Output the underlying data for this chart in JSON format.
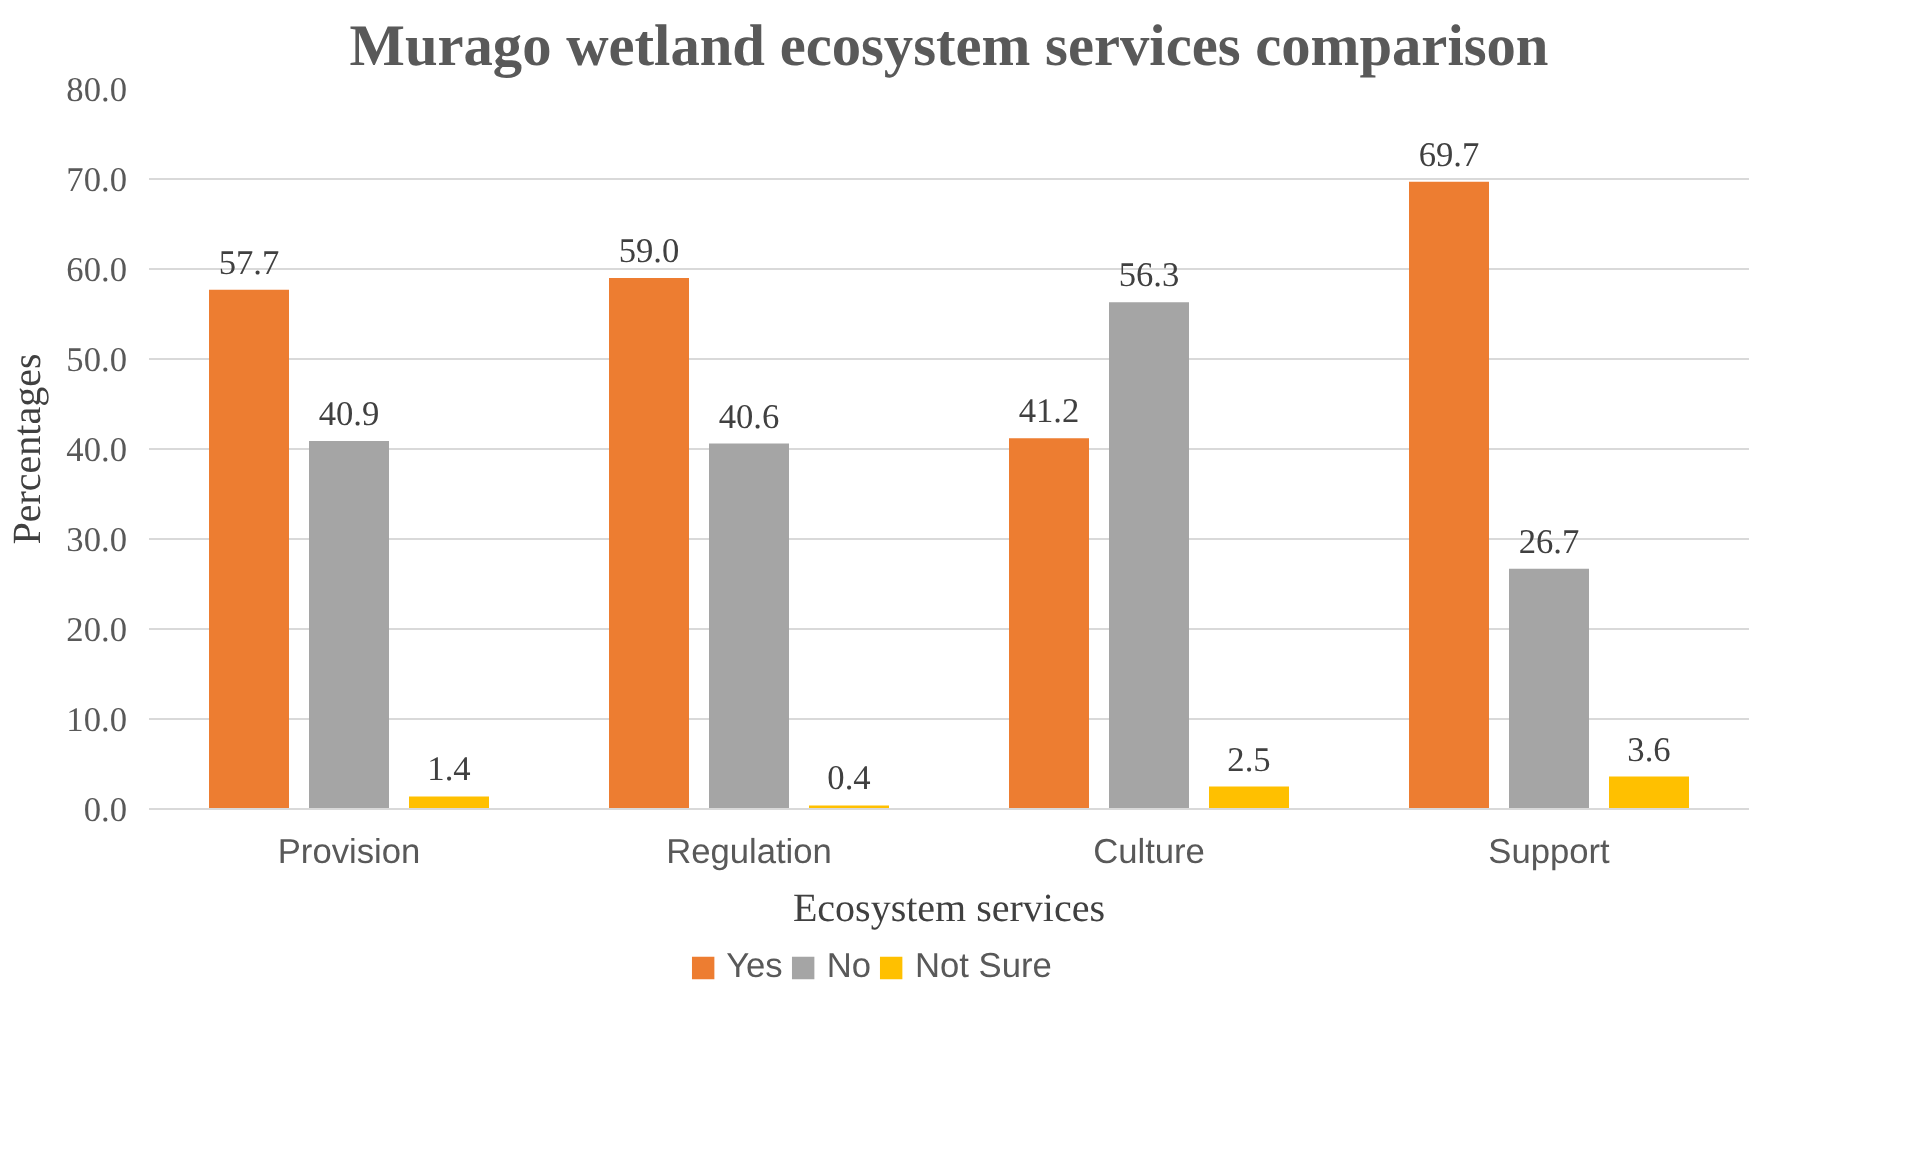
{
  "chart_data": {
    "type": "bar",
    "title": "Murago wetland ecosystem services comparison",
    "xlabel": "Ecosystem services",
    "ylabel": "Percentages",
    "categories": [
      "Provision",
      "Regulation",
      "Culture",
      "Support"
    ],
    "series": [
      {
        "name": "Yes",
        "color": "#ed7d31",
        "values": [
          57.7,
          59.0,
          41.2,
          69.7
        ],
        "value_labels": [
          "57.7",
          "59.0",
          "41.2",
          "69.7"
        ]
      },
      {
        "name": "No",
        "color": "#a5a5a5",
        "values": [
          40.9,
          40.6,
          56.3,
          26.7
        ],
        "value_labels": [
          "40.9",
          "40.6",
          "56.3",
          "26.7"
        ]
      },
      {
        "name": "Not Sure",
        "color": "#ffc000",
        "values": [
          1.4,
          0.4,
          2.5,
          3.6
        ],
        "value_labels": [
          "1.4",
          "0.4",
          "2.5",
          "3.6"
        ]
      }
    ],
    "ylim": [
      0,
      80
    ],
    "yticks": [
      {
        "value": 0,
        "label": "0.0"
      },
      {
        "value": 10,
        "label": "10.0"
      },
      {
        "value": 20,
        "label": "20.0"
      },
      {
        "value": 30,
        "label": "30.0"
      },
      {
        "value": 40,
        "label": "40.0"
      },
      {
        "value": 50,
        "label": "50.0"
      },
      {
        "value": 60,
        "label": "60.0"
      },
      {
        "value": 70,
        "label": "70.0"
      },
      {
        "value": 80,
        "label": "80.0"
      }
    ],
    "grid": "y",
    "legend": "bottom"
  }
}
